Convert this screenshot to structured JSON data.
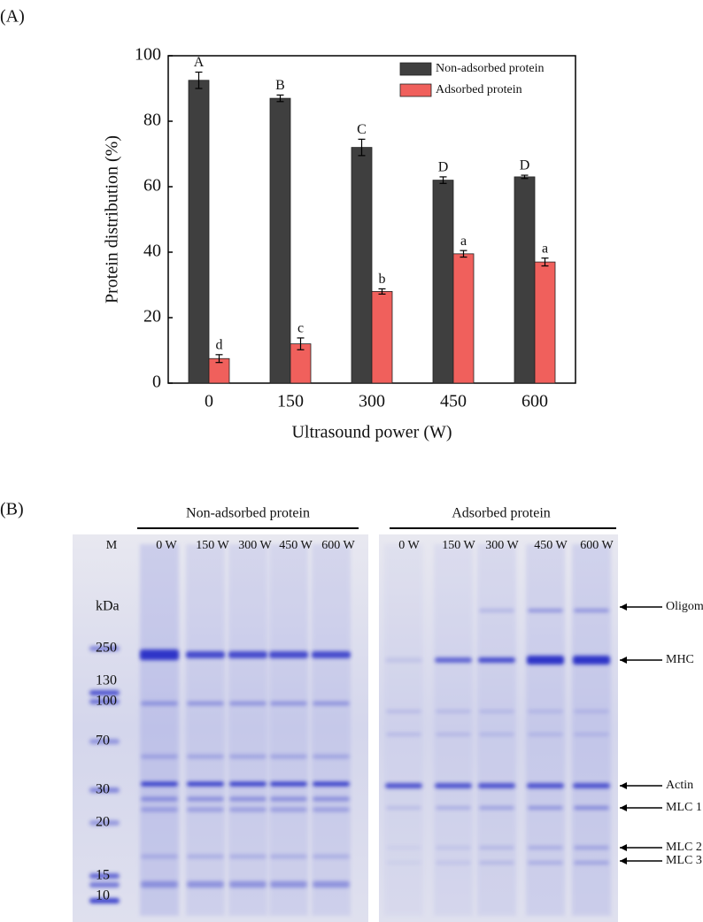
{
  "chart_data": {
    "type": "bar",
    "panel_label": "(A)",
    "x_label": "Ultrasound power (W)",
    "y_label": "Protein distribution (%)",
    "categories": [
      "0",
      "150",
      "300",
      "450",
      "600"
    ],
    "series": [
      {
        "name": "Non-adsorbed protein",
        "color": "#3f3f3f",
        "values": [
          92.5,
          87,
          72,
          62,
          63
        ],
        "errors": [
          2.5,
          1,
          2.5,
          1,
          0.5
        ],
        "letters": [
          "A",
          "B",
          "C",
          "D",
          "D"
        ]
      },
      {
        "name": "Adsorbed protein",
        "color": "#f0605c",
        "values": [
          7.5,
          12,
          28,
          39.5,
          37
        ],
        "errors": [
          1.2,
          1.8,
          0.8,
          1,
          1.2
        ],
        "letters": [
          "d",
          "c",
          "b",
          "a",
          "a"
        ]
      }
    ],
    "ylim": [
      0,
      100
    ],
    "yticks": [
      0,
      20,
      40,
      60,
      80,
      100
    ],
    "legend": "upper right"
  },
  "gel": {
    "panel_label": "(B)",
    "group_left": "Non-adsorbed protein",
    "group_right": "Adsorbed protein",
    "lanes_left": [
      "M",
      "0 W",
      "150 W",
      "300 W",
      "450 W",
      "600 W"
    ],
    "lanes_right": [
      "0 W",
      "150 W",
      "300 W",
      "450 W",
      "600 W"
    ],
    "marker_unit": "kDa",
    "markers": [
      "250",
      "130",
      "100",
      "70",
      "30",
      "20",
      "15",
      "10"
    ],
    "bands": [
      "Oligomer",
      "MHC",
      "Actin",
      "MLC 1",
      "MLC 2",
      "MLC 3"
    ]
  }
}
